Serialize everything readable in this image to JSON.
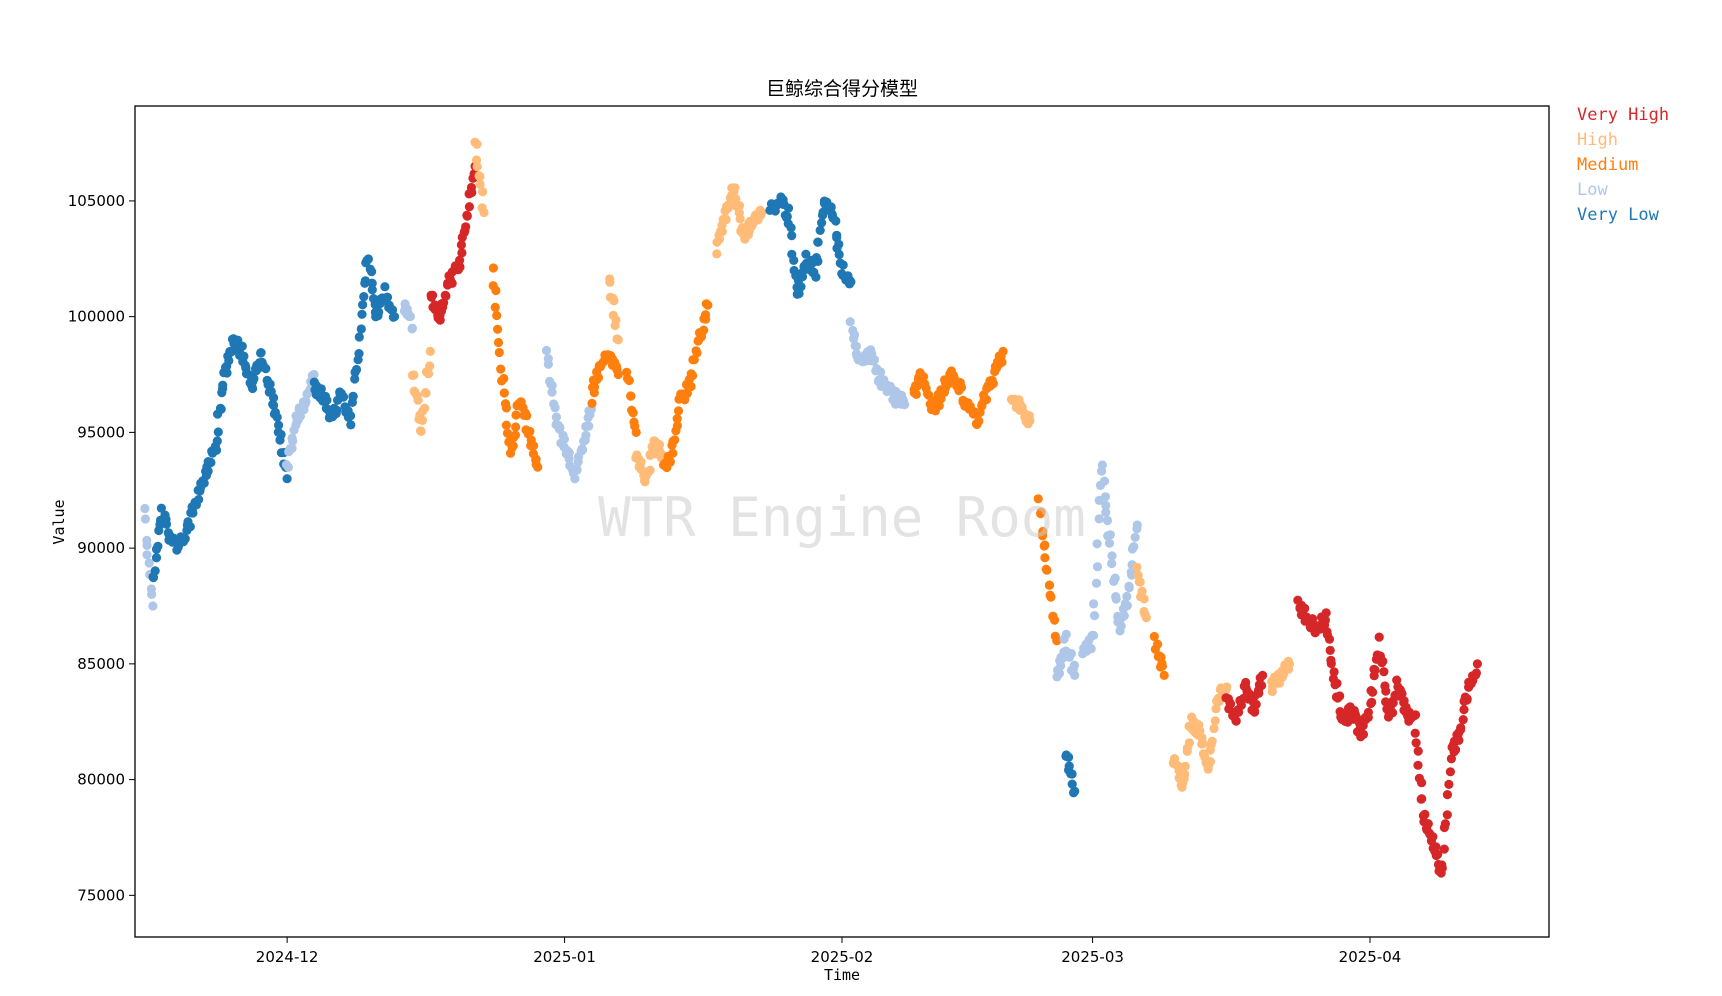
{
  "chart_data": {
    "type": "scatter",
    "title": "巨鲸综合得分模型",
    "xlabel": "Time",
    "ylabel": "Value",
    "watermark": "WTR Engine Room",
    "x_range": [
      "2024-11-14",
      "2025-04-21"
    ],
    "ylim": [
      73200,
      109100
    ],
    "x_ticks": [
      "2024-12",
      "2025-01",
      "2025-02",
      "2025-03",
      "2025-04"
    ],
    "x_tick_dates": [
      "2024-12-01",
      "2025-01-01",
      "2025-02-01",
      "2025-03-01",
      "2025-04-01"
    ],
    "y_ticks": [
      75000,
      80000,
      85000,
      90000,
      95000,
      100000,
      105000
    ],
    "grid": false,
    "legend_position": "outside-top-right",
    "categories": [
      {
        "name": "Very High",
        "color": "#d62728"
      },
      {
        "name": "High",
        "color": "#ffbb78"
      },
      {
        "name": "Medium",
        "color": "#ff7f0e"
      },
      {
        "name": "Low",
        "color": "#aec7e8"
      },
      {
        "name": "Very Low",
        "color": "#1f77b4"
      }
    ],
    "segments": [
      {
        "category": "Low",
        "points": [
          [
            "2024-11-15",
            91500
          ],
          [
            "2024-11-16",
            87500
          ]
        ]
      },
      {
        "category": "Very Low",
        "points": [
          [
            "2024-11-16",
            88500
          ],
          [
            "2024-11-17",
            91500
          ],
          [
            "2024-11-18",
            90500
          ],
          [
            "2024-11-19",
            90000
          ],
          [
            "2024-11-20",
            91000
          ],
          [
            "2024-11-21",
            92200
          ],
          [
            "2024-11-22",
            93500
          ],
          [
            "2024-11-23",
            94500
          ],
          [
            "2024-11-24",
            97500
          ],
          [
            "2024-11-25",
            99000
          ],
          [
            "2024-11-26",
            98500
          ],
          [
            "2024-11-27",
            97000
          ],
          [
            "2024-11-28",
            98300
          ],
          [
            "2024-11-29",
            97000
          ],
          [
            "2024-11-30",
            95500
          ],
          [
            "2024-12-01",
            93000
          ]
        ]
      },
      {
        "category": "Low",
        "points": [
          [
            "2024-12-01",
            93500
          ],
          [
            "2024-12-02",
            95500
          ],
          [
            "2024-12-03",
            96200
          ],
          [
            "2024-12-04",
            97500
          ]
        ]
      },
      {
        "category": "Very Low",
        "points": [
          [
            "2024-12-04",
            97000
          ],
          [
            "2024-12-05",
            96500
          ],
          [
            "2024-12-06",
            95500
          ],
          [
            "2024-12-07",
            96800
          ],
          [
            "2024-12-08",
            95500
          ],
          [
            "2024-12-09",
            98500
          ],
          [
            "2024-12-10",
            102500
          ],
          [
            "2024-12-11",
            100000
          ],
          [
            "2024-12-12",
            101000
          ],
          [
            "2024-12-13",
            100000
          ]
        ]
      },
      {
        "category": "Low",
        "points": [
          [
            "2024-12-14",
            100500
          ],
          [
            "2024-12-15",
            99500
          ]
        ]
      },
      {
        "category": "High",
        "points": [
          [
            "2024-12-15",
            97500
          ],
          [
            "2024-12-16",
            95000
          ],
          [
            "2024-12-17",
            98500
          ]
        ]
      },
      {
        "category": "Very High",
        "points": [
          [
            "2024-12-17",
            101000
          ],
          [
            "2024-12-18",
            100000
          ],
          [
            "2024-12-19",
            101500
          ],
          [
            "2024-12-20",
            102000
          ],
          [
            "2024-12-21",
            104000
          ],
          [
            "2024-12-22",
            106500
          ]
        ]
      },
      {
        "category": "High",
        "points": [
          [
            "2024-12-22",
            107500
          ],
          [
            "2024-12-23",
            104500
          ]
        ]
      },
      {
        "category": "Medium",
        "points": [
          [
            "2024-12-24",
            102000
          ],
          [
            "2024-12-25",
            97500
          ],
          [
            "2024-12-26",
            94000
          ],
          [
            "2024-12-27",
            96500
          ],
          [
            "2024-12-28",
            95000
          ],
          [
            "2024-12-29",
            93500
          ]
        ]
      },
      {
        "category": "Low",
        "points": [
          [
            "2024-12-30",
            98500
          ],
          [
            "2024-12-31",
            95500
          ],
          [
            "2025-01-01",
            94500
          ],
          [
            "2025-01-02",
            93000
          ],
          [
            "2025-01-03",
            94500
          ],
          [
            "2025-01-04",
            96000
          ]
        ]
      },
      {
        "category": "Medium",
        "points": [
          [
            "2025-01-04",
            96500
          ],
          [
            "2025-01-05",
            98000
          ],
          [
            "2025-01-06",
            98300
          ],
          [
            "2025-01-07",
            97500
          ]
        ]
      },
      {
        "category": "High",
        "points": [
          [
            "2025-01-06",
            101500
          ],
          [
            "2025-01-07",
            99000
          ]
        ]
      },
      {
        "category": "Medium",
        "points": [
          [
            "2025-01-08",
            97500
          ],
          [
            "2025-01-09",
            95000
          ]
        ]
      },
      {
        "category": "High",
        "points": [
          [
            "2025-01-09",
            94000
          ],
          [
            "2025-01-10",
            93000
          ],
          [
            "2025-01-11",
            94500
          ],
          [
            "2025-01-12",
            94000
          ]
        ]
      },
      {
        "category": "Medium",
        "points": [
          [
            "2025-01-12",
            93500
          ],
          [
            "2025-01-13",
            94000
          ],
          [
            "2025-01-14",
            96500
          ],
          [
            "2025-01-15",
            97000
          ],
          [
            "2025-01-16",
            99000
          ],
          [
            "2025-01-17",
            100500
          ]
        ]
      },
      {
        "category": "High",
        "points": [
          [
            "2025-01-18",
            103000
          ],
          [
            "2025-01-19",
            104500
          ],
          [
            "2025-01-20",
            105500
          ],
          [
            "2025-01-21",
            103500
          ],
          [
            "2025-01-22",
            104000
          ],
          [
            "2025-01-23",
            104500
          ]
        ]
      },
      {
        "category": "Very Low",
        "points": [
          [
            "2025-01-24",
            104500
          ],
          [
            "2025-01-25",
            105000
          ],
          [
            "2025-01-26",
            104500
          ],
          [
            "2025-01-27",
            101000
          ],
          [
            "2025-01-28",
            102500
          ],
          [
            "2025-01-29",
            102000
          ],
          [
            "2025-01-30",
            105000
          ],
          [
            "2025-01-31",
            104500
          ],
          [
            "2025-02-01",
            102000
          ],
          [
            "2025-02-02",
            101500
          ]
        ]
      },
      {
        "category": "Low",
        "points": [
          [
            "2025-02-02",
            99500
          ],
          [
            "2025-02-03",
            98000
          ],
          [
            "2025-02-04",
            98500
          ],
          [
            "2025-02-05",
            97500
          ],
          [
            "2025-02-06",
            97000
          ],
          [
            "2025-02-07",
            96500
          ],
          [
            "2025-02-08",
            96200
          ]
        ]
      },
      {
        "category": "Medium",
        "points": [
          [
            "2025-02-09",
            96500
          ],
          [
            "2025-02-10",
            97500
          ],
          [
            "2025-02-11",
            96000
          ],
          [
            "2025-02-12",
            96500
          ],
          [
            "2025-02-13",
            97500
          ],
          [
            "2025-02-14",
            97000
          ],
          [
            "2025-02-15",
            96000
          ],
          [
            "2025-02-16",
            95500
          ],
          [
            "2025-02-17",
            96500
          ],
          [
            "2025-02-18",
            97500
          ],
          [
            "2025-02-19",
            98500
          ]
        ]
      },
      {
        "category": "High",
        "points": [
          [
            "2025-02-20",
            96500
          ],
          [
            "2025-02-21",
            96000
          ],
          [
            "2025-02-22",
            95500
          ]
        ]
      },
      {
        "category": "Medium",
        "points": [
          [
            "2025-02-23",
            92000
          ],
          [
            "2025-02-24",
            89000
          ],
          [
            "2025-02-25",
            86000
          ]
        ]
      },
      {
        "category": "Low",
        "points": [
          [
            "2025-02-25",
            84500
          ],
          [
            "2025-02-26",
            86000
          ],
          [
            "2025-02-27",
            84500
          ]
        ]
      },
      {
        "category": "Very Low",
        "points": [
          [
            "2025-02-26",
            81000
          ],
          [
            "2025-02-27",
            79500
          ]
        ]
      },
      {
        "category": "Low",
        "points": [
          [
            "2025-02-28",
            85500
          ],
          [
            "2025-03-01",
            86000
          ],
          [
            "2025-03-02",
            93500
          ],
          [
            "2025-03-03",
            90000
          ],
          [
            "2025-03-04",
            86500
          ],
          [
            "2025-03-05",
            88000
          ],
          [
            "2025-03-06",
            91000
          ]
        ]
      },
      {
        "category": "High",
        "points": [
          [
            "2025-03-06",
            89000
          ],
          [
            "2025-03-07",
            87000
          ]
        ]
      },
      {
        "category": "Medium",
        "points": [
          [
            "2025-03-08",
            86000
          ],
          [
            "2025-03-09",
            84500
          ]
        ]
      },
      {
        "category": "High",
        "points": [
          [
            "2025-03-10",
            81000
          ],
          [
            "2025-03-11",
            79500
          ],
          [
            "2025-03-12",
            82500
          ],
          [
            "2025-03-13",
            82000
          ],
          [
            "2025-03-14",
            80500
          ],
          [
            "2025-03-15",
            83500
          ],
          [
            "2025-03-16",
            84000
          ]
        ]
      },
      {
        "category": "Very High",
        "points": [
          [
            "2025-03-16",
            83500
          ],
          [
            "2025-03-17",
            82500
          ],
          [
            "2025-03-18",
            84000
          ],
          [
            "2025-03-19",
            83000
          ],
          [
            "2025-03-20",
            84500
          ]
        ]
      },
      {
        "category": "High",
        "points": [
          [
            "2025-03-21",
            84000
          ],
          [
            "2025-03-22",
            84500
          ],
          [
            "2025-03-23",
            85000
          ]
        ]
      },
      {
        "category": "Very High",
        "points": [
          [
            "2025-03-24",
            87500
          ],
          [
            "2025-03-25",
            87000
          ],
          [
            "2025-03-26",
            86500
          ],
          [
            "2025-03-27",
            87000
          ],
          [
            "2025-03-28",
            84500
          ],
          [
            "2025-03-29",
            82500
          ],
          [
            "2025-03-30",
            83000
          ],
          [
            "2025-03-31",
            82000
          ],
          [
            "2025-04-01",
            83000
          ],
          [
            "2025-04-02",
            86000
          ],
          [
            "2025-04-03",
            82500
          ],
          [
            "2025-04-04",
            84000
          ],
          [
            "2025-04-05",
            83000
          ],
          [
            "2025-04-06",
            82500
          ],
          [
            "2025-04-07",
            78500
          ],
          [
            "2025-04-08",
            77500
          ],
          [
            "2025-04-09",
            76000
          ],
          [
            "2025-04-10",
            81000
          ],
          [
            "2025-04-11",
            82000
          ],
          [
            "2025-04-12",
            84000
          ],
          [
            "2025-04-13",
            85000
          ]
        ]
      }
    ]
  }
}
